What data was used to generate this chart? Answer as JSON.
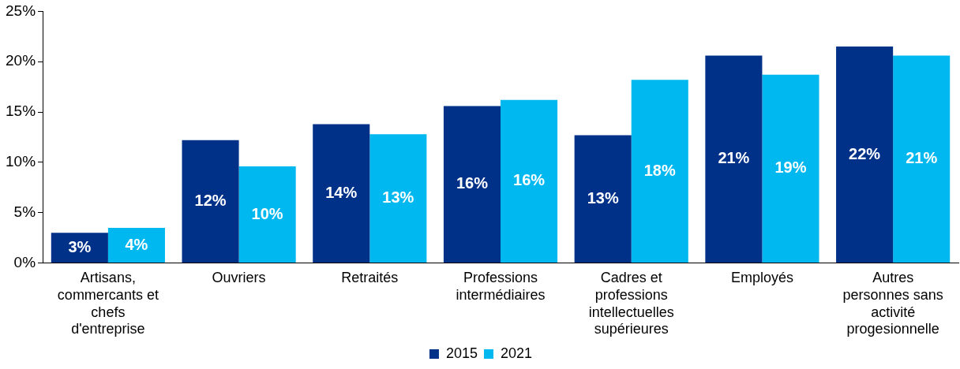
{
  "chart_data": {
    "type": "bar",
    "categories": [
      "Artisans, commercants et chefs d'entreprise",
      "Ouvriers",
      "Retraités",
      "Professions intermédiaires",
      "Cadres et professions intellectuelles supérieures",
      "Employés",
      "Autres personnes sans activité progesionnelle"
    ],
    "series": [
      {
        "name": "2015",
        "color": "#003189",
        "values": [
          3.0,
          12.2,
          13.8,
          15.6,
          12.7,
          20.6,
          21.5
        ],
        "value_labels": [
          "3%",
          "12%",
          "14%",
          "16%",
          "13%",
          "21%",
          "22%"
        ]
      },
      {
        "name": "2021",
        "color": "#00b8f0",
        "values": [
          3.5,
          9.6,
          12.8,
          16.2,
          18.2,
          18.7,
          20.6
        ],
        "value_labels": [
          "4%",
          "10%",
          "13%",
          "16%",
          "18%",
          "19%",
          "21%"
        ]
      }
    ],
    "ylim": [
      0,
      25
    ],
    "yticks": [
      {
        "value": 0,
        "label": "0%"
      },
      {
        "value": 5,
        "label": "5%"
      },
      {
        "value": 10,
        "label": "10%"
      },
      {
        "value": 15,
        "label": "15%"
      },
      {
        "value": 20,
        "label": "20%"
      },
      {
        "value": 25,
        "label": "25%"
      }
    ],
    "grid": false,
    "legend": "bottom"
  }
}
